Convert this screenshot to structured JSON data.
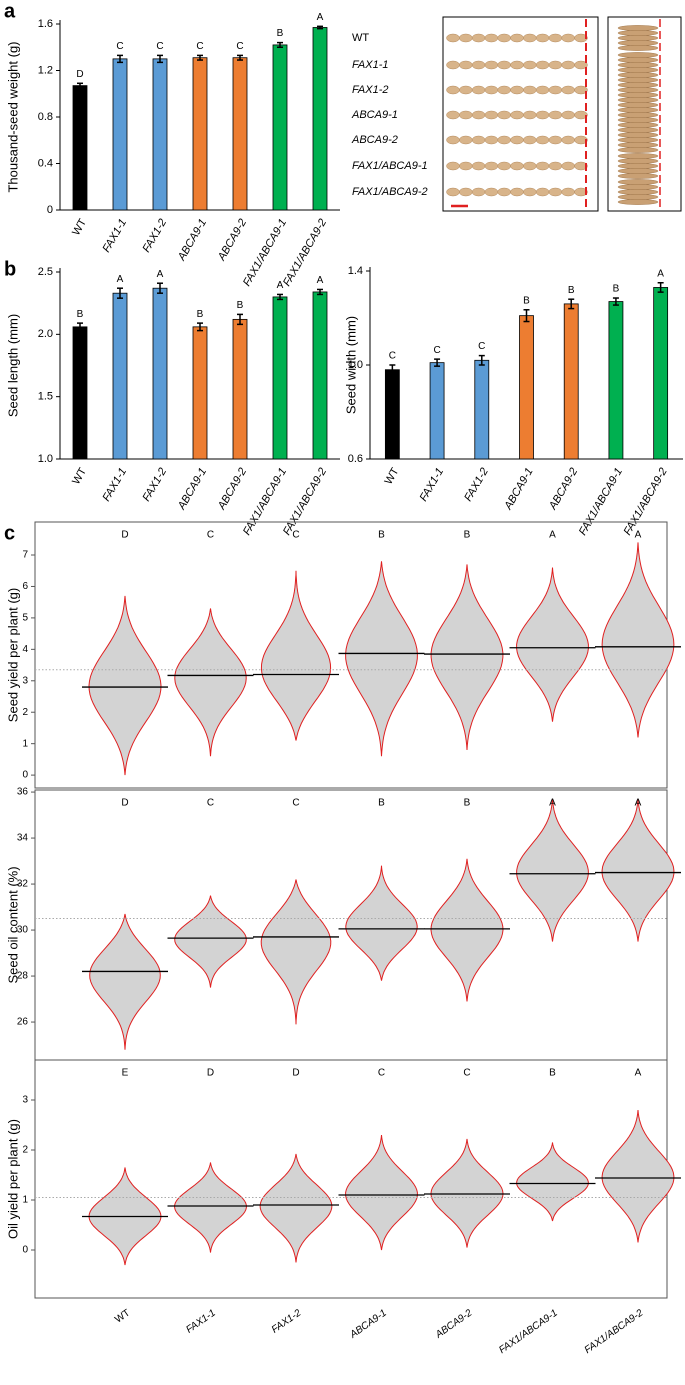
{
  "chart_data": [
    {
      "type": "bar",
      "panel": "a",
      "ylabel": "Thousand-seed weight (g)",
      "categories": [
        "WT",
        "FAX1-1",
        "FAX1-2",
        "ABCA9-1",
        "ABCA9-2",
        "FAX1/ABCA9-1",
        "FAX1/ABCA9-2"
      ],
      "values": [
        1.07,
        1.3,
        1.3,
        1.31,
        1.31,
        1.42,
        1.57
      ],
      "errors": [
        0.02,
        0.03,
        0.03,
        0.02,
        0.02,
        0.02,
        0.01
      ],
      "letters": [
        "D",
        "C",
        "C",
        "C",
        "C",
        "B",
        "A"
      ],
      "colors": [
        "#000000",
        "#5b9bd5",
        "#5b9bd5",
        "#ed7d31",
        "#ed7d31",
        "#00b050",
        "#00b050"
      ],
      "ylim": [
        0,
        1.6
      ],
      "yticks": [
        0,
        0.4,
        0.8,
        1.2,
        1.6
      ]
    },
    {
      "type": "bar",
      "panel": "b",
      "ylabel": "Seed length (mm)",
      "categories": [
        "WT",
        "FAX1-1",
        "FAX1-2",
        "ABCA9-1",
        "ABCA9-2",
        "FAX1/ABCA9-1",
        "FAX1/ABCA9-2"
      ],
      "values": [
        2.06,
        2.33,
        2.37,
        2.06,
        2.12,
        2.3,
        2.34
      ],
      "errors": [
        0.03,
        0.04,
        0.04,
        0.03,
        0.04,
        0.02,
        0.02
      ],
      "letters": [
        "B",
        "A",
        "A",
        "B",
        "B",
        "A",
        "A"
      ],
      "colors": [
        "#000000",
        "#5b9bd5",
        "#5b9bd5",
        "#ed7d31",
        "#ed7d31",
        "#00b050",
        "#00b050"
      ],
      "ylim": [
        1,
        2.5
      ],
      "yticks": [
        {
          "value": 1,
          "label": "1.0"
        },
        1.5,
        {
          "value": 2,
          "label": "2.0"
        },
        2.5
      ]
    },
    {
      "type": "bar",
      "ylabel": "Seed width (mm)",
      "categories": [
        "WT",
        "FAX1-1",
        "FAX1-2",
        "ABCA9-1",
        "ABCA9-2",
        "FAX1/ABCA9-1",
        "FAX1/ABCA9-2"
      ],
      "values": [
        0.98,
        1.01,
        1.02,
        1.21,
        1.26,
        1.27,
        1.33
      ],
      "errors": [
        0.02,
        0.015,
        0.02,
        0.025,
        0.02,
        0.015,
        0.02
      ],
      "letters": [
        "C",
        "C",
        "C",
        "B",
        "B",
        "B",
        "A"
      ],
      "colors": [
        "#000000",
        "#5b9bd5",
        "#5b9bd5",
        "#ed7d31",
        "#ed7d31",
        "#00b050",
        "#00b050"
      ],
      "ylim": [
        0.6,
        1.4
      ],
      "yticks": [
        0.6,
        {
          "value": 1,
          "label": "1.0"
        },
        1.4
      ]
    },
    {
      "type": "bean",
      "panel": "c",
      "ylabel": "Seed yield per plant (g)",
      "means": [
        2.8,
        3.17,
        3.2,
        3.87,
        3.85,
        4.05,
        4.08
      ],
      "lows": [
        0,
        0.6,
        1.1,
        0.6,
        0.8,
        1.7,
        1.2
      ],
      "highs": [
        5.7,
        5.3,
        6.5,
        6.8,
        6.7,
        6.6,
        7.4
      ],
      "overall_mean": 3.35,
      "letters": [
        "D",
        "C",
        "C",
        "B",
        "B",
        "A",
        "A"
      ],
      "ylim": [
        -0.41,
        8.05
      ],
      "yticks": [
        0,
        1,
        2,
        3,
        4,
        5,
        6,
        7
      ]
    },
    {
      "type": "bean",
      "ylabel": "Seed oil content (%)",
      "means": [
        28.2,
        29.65,
        29.7,
        30.05,
        30.05,
        32.45,
        32.5
      ],
      "lows": [
        24.8,
        27.5,
        25.9,
        27.8,
        26.9,
        29.5,
        29.5
      ],
      "highs": [
        30.7,
        31.5,
        32.2,
        32.8,
        33.1,
        35.7,
        35.7
      ],
      "overall_mean": 30.5,
      "letters": [
        "D",
        "C",
        "C",
        "B",
        "B",
        "A",
        "A"
      ],
      "ylim": [
        24.35,
        36.09
      ],
      "yticks": [
        26,
        28,
        30,
        32,
        34,
        36
      ]
    },
    {
      "type": "bean",
      "ylabel": "Oil yield per plant (g)",
      "categories": [
        "WT",
        "FAX1-1",
        "FAX1-2",
        "ABCA9-1",
        "ABCA9-2",
        "FAX1/ABCA9-1",
        "FAX1/ABCA9-2"
      ],
      "means": [
        0.67,
        0.88,
        0.9,
        1.1,
        1.12,
        1.33,
        1.44
      ],
      "lows": [
        -0.3,
        -0.05,
        -0.25,
        0,
        0.05,
        0.58,
        0.15
      ],
      "highs": [
        1.65,
        1.75,
        1.92,
        2.3,
        2.22,
        2.15,
        2.8
      ],
      "overall_mean": 1.05,
      "letters": [
        "E",
        "D",
        "D",
        "C",
        "C",
        "B",
        "A"
      ],
      "ylim": [
        -0.96,
        3.8
      ],
      "yticks": [
        0,
        1,
        2,
        3
      ]
    }
  ],
  "photo_legend": {
    "labels": [
      "WT",
      "FAX1-1",
      "FAX1-2",
      "ABCA9-1",
      "ABCA9-2",
      "FAX1/ABCA9-1",
      "FAX1/ABCA9-2"
    ]
  }
}
